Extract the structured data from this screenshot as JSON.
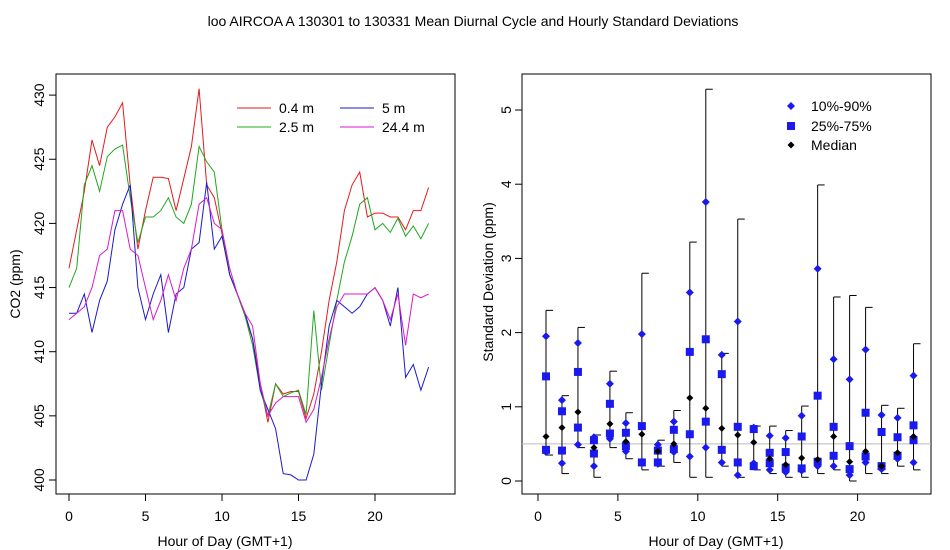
{
  "figure_title": "loo   AIRCOA A   130301 to 130331   Mean Diurnal Cycle and Hourly Standard Deviations",
  "chart_data": [
    {
      "type": "line",
      "title": "",
      "xlabel": "Hour of Day (GMT+1)",
      "ylabel": "CO2 (ppm)",
      "xlim": [
        0,
        24
      ],
      "ylim": [
        400,
        430
      ],
      "xticks": [
        0,
        5,
        10,
        15,
        20
      ],
      "yticks": [
        400,
        405,
        410,
        415,
        420,
        425,
        430
      ],
      "grid": false,
      "legend_position": "top-right",
      "x": [
        0,
        0.5,
        1,
        1.5,
        2,
        2.5,
        3,
        3.5,
        4,
        4.5,
        5,
        5.5,
        6,
        6.5,
        7,
        7.5,
        8,
        8.5,
        9,
        9.5,
        10,
        10.5,
        11,
        11.5,
        12,
        12.5,
        13,
        13.5,
        14,
        14.5,
        15,
        15.5,
        16,
        16.5,
        17,
        17.5,
        18,
        18.5,
        19,
        19.5,
        20,
        20.5,
        21,
        21.5,
        22,
        22.5,
        23,
        23.5
      ],
      "series": [
        {
          "name": "0.4 m",
          "color": "#e41a1c",
          "values": [
            416.5,
            419.5,
            422.5,
            426.5,
            424.5,
            427.5,
            428.3,
            429.4,
            423,
            418,
            421,
            423.6,
            423.6,
            423.5,
            421,
            423.5,
            426,
            430.5,
            423,
            422,
            419.2,
            416,
            414.5,
            412.8,
            411,
            407.5,
            404.5,
            407.5,
            406.7,
            406.9,
            406.9,
            404.8,
            406.7,
            410,
            414,
            417,
            421,
            423,
            424,
            420.5,
            420.8,
            420.8,
            420.5,
            420.5,
            419.5,
            421,
            421,
            422.8
          ]
        },
        {
          "name": "2.5 m",
          "color": "#1fa81f",
          "values": [
            415,
            416.5,
            423,
            424.5,
            422.5,
            425.2,
            425.8,
            426.1,
            422,
            418.5,
            420.5,
            420.5,
            421,
            422,
            420.5,
            420,
            421.5,
            426,
            424.8,
            424,
            419.5,
            416,
            414.5,
            412.8,
            410.5,
            407,
            405,
            407.5,
            406.5,
            406.8,
            407,
            405.1,
            413.2,
            407,
            410.5,
            414,
            417,
            419,
            421.5,
            422,
            419.5,
            420,
            419.3,
            420.4,
            419,
            419.8,
            418.8,
            420
          ]
        },
        {
          "name": "5 m",
          "color": "#1a1acc",
          "values": [
            413,
            413,
            414.5,
            411.5,
            414,
            415.5,
            419.5,
            421.5,
            423,
            415,
            412.5,
            414.5,
            416,
            411.5,
            414.5,
            415,
            418,
            418.5,
            423.2,
            418,
            419,
            416,
            414.5,
            413,
            411,
            407,
            405.5,
            404,
            400.5,
            400.4,
            400,
            400,
            402,
            407.5,
            412,
            414,
            413.5,
            413,
            413.5,
            414.5,
            415,
            414,
            412,
            415,
            408,
            409,
            407,
            408.8
          ]
        },
        {
          "name": "24.4 m",
          "color": "#d91acc",
          "values": [
            412.5,
            413,
            413.5,
            415,
            417.5,
            418,
            421,
            421,
            418,
            417.5,
            415,
            412.5,
            414,
            416,
            414,
            416.5,
            418,
            421.5,
            422,
            420,
            419.5,
            416.5,
            414.5,
            413,
            412,
            407.5,
            405,
            406,
            406.5,
            406.5,
            406.5,
            404.5,
            405.5,
            408,
            411,
            413.5,
            414.5,
            414.5,
            414.5,
            414.5,
            415,
            414,
            412.5,
            414.5,
            410.5,
            414.5,
            414.2,
            414.5
          ]
        }
      ]
    },
    {
      "type": "scatter",
      "title": "",
      "xlabel": "Hour of Day (GMT+1)",
      "ylabel": "Standard Deviation (ppm)",
      "xlim": [
        0,
        24
      ],
      "ylim": [
        0,
        5.3
      ],
      "xticks": [
        0,
        5,
        10,
        15,
        20
      ],
      "yticks": [
        0,
        1,
        2,
        3,
        4,
        5
      ],
      "grid": false,
      "reference_line": 0.5,
      "legend_position": "top-right",
      "x": [
        0.5,
        1.5,
        2.5,
        3.5,
        4.5,
        5.5,
        6.5,
        7.5,
        8.5,
        9.5,
        10.5,
        11.5,
        12.5,
        13.5,
        14.5,
        15.5,
        16.5,
        17.5,
        18.5,
        19.5,
        20.5,
        21.5,
        22.5,
        23.5
      ],
      "whisker_low": [
        0.35,
        0.1,
        0.45,
        0.05,
        0.45,
        0.3,
        0.15,
        0.2,
        0.25,
        0.05,
        0.05,
        0.2,
        0.05,
        0.15,
        0.1,
        0.05,
        0.05,
        0.1,
        0.15,
        0.0,
        0.1,
        0.1,
        0.2,
        0.15
      ],
      "whisker_high": [
        2.3,
        1.15,
        2.07,
        0.62,
        1.48,
        0.92,
        2.8,
        0.55,
        0.95,
        3.22,
        5.28,
        1.72,
        3.53,
        0.74,
        0.74,
        0.68,
        1.01,
        3.99,
        2.48,
        2.5,
        2.34,
        1.02,
        0.98,
        1.85
      ],
      "series": [
        {
          "name": "10%-90%",
          "marker": "diamond",
          "color": "#1a1aee",
          "values": [
            [
              0.39,
              1.95
            ],
            [
              0.24,
              1.09
            ],
            [
              0.49,
              1.86
            ],
            [
              0.2,
              0.59
            ],
            [
              0.57,
              1.31
            ],
            [
              0.4,
              0.78
            ],
            [
              0.25,
              1.98
            ],
            [
              0.23,
              0.49
            ],
            [
              0.39,
              0.8
            ],
            [
              0.33,
              2.54
            ],
            [
              0.45,
              3.76
            ],
            [
              0.25,
              1.7
            ],
            [
              0.08,
              2.15
            ],
            [
              0.24,
              0.72
            ],
            [
              0.15,
              0.61
            ],
            [
              0.12,
              0.58
            ],
            [
              0.14,
              0.88
            ],
            [
              0.2,
              2.86
            ],
            [
              0.2,
              1.64
            ],
            [
              0.08,
              1.37
            ],
            [
              0.25,
              1.77
            ],
            [
              0.16,
              0.89
            ],
            [
              0.3,
              0.85
            ],
            [
              0.25,
              1.42
            ]
          ]
        },
        {
          "name": "25%-75%",
          "marker": "square",
          "color": "#1a1aee",
          "values": [
            [
              0.42,
              1.41
            ],
            [
              0.41,
              0.94
            ],
            [
              0.72,
              1.47
            ],
            [
              0.37,
              0.55
            ],
            [
              0.64,
              1.04
            ],
            [
              0.47,
              0.65
            ],
            [
              0.25,
              0.74
            ],
            [
              0.25,
              0.41
            ],
            [
              0.43,
              0.69
            ],
            [
              0.63,
              1.74
            ],
            [
              0.8,
              1.91
            ],
            [
              0.42,
              1.44
            ],
            [
              0.25,
              0.73
            ],
            [
              0.2,
              0.7
            ],
            [
              0.24,
              0.38
            ],
            [
              0.18,
              0.39
            ],
            [
              0.17,
              0.6
            ],
            [
              0.26,
              1.15
            ],
            [
              0.34,
              0.73
            ],
            [
              0.16,
              0.47
            ],
            [
              0.33,
              0.92
            ],
            [
              0.2,
              0.66
            ],
            [
              0.34,
              0.59
            ],
            [
              0.55,
              0.75
            ]
          ]
        },
        {
          "name": "Median",
          "marker": "circle",
          "color": "#000000",
          "values": [
            0.6,
            0.72,
            0.93,
            0.45,
            0.77,
            0.53,
            0.63,
            0.4,
            0.5,
            1.12,
            0.98,
            0.71,
            0.62,
            0.52,
            0.3,
            0.22,
            0.31,
            0.29,
            0.6,
            0.26,
            0.4,
            0.2,
            0.38,
            0.6
          ]
        }
      ]
    }
  ]
}
